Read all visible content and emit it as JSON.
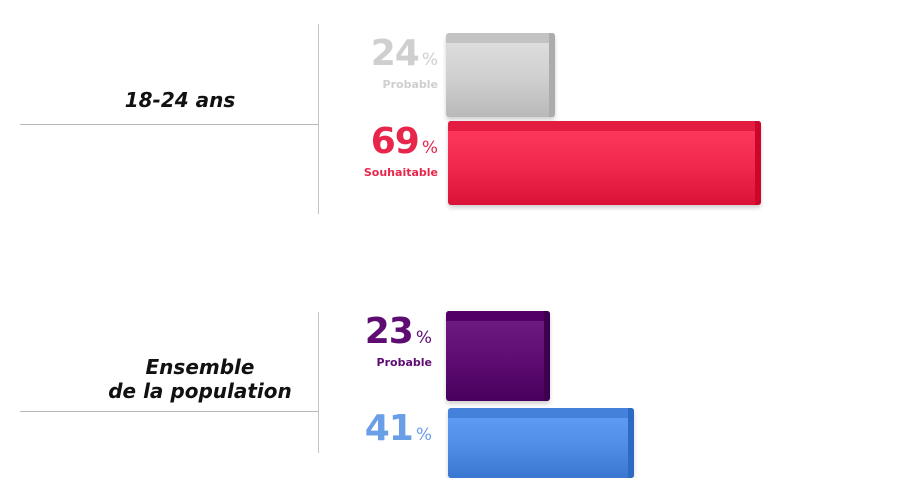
{
  "chart_data": {
    "type": "bar",
    "orientation": "horizontal",
    "unit": "%",
    "groups": [
      {
        "label": "18-24 ans",
        "bars": [
          {
            "series": "Probable",
            "value": 24,
            "color": "#cfcfcf",
            "label_color": "#cfcfcf"
          },
          {
            "series": "Souhaitable",
            "value": 69,
            "color": "#f0284e",
            "label_color": "#e8264c"
          }
        ]
      },
      {
        "label": "Ensemble de la population",
        "label_lines": [
          "Ensemble",
          "de la population"
        ],
        "bars": [
          {
            "series": "Probable",
            "value": 23,
            "color": "#5e0c72",
            "label_color": "#5e0c72"
          },
          {
            "series": "",
            "value": 41,
            "color": "#4f8de6",
            "label_color": "#6a9fe8"
          }
        ]
      }
    ]
  }
}
